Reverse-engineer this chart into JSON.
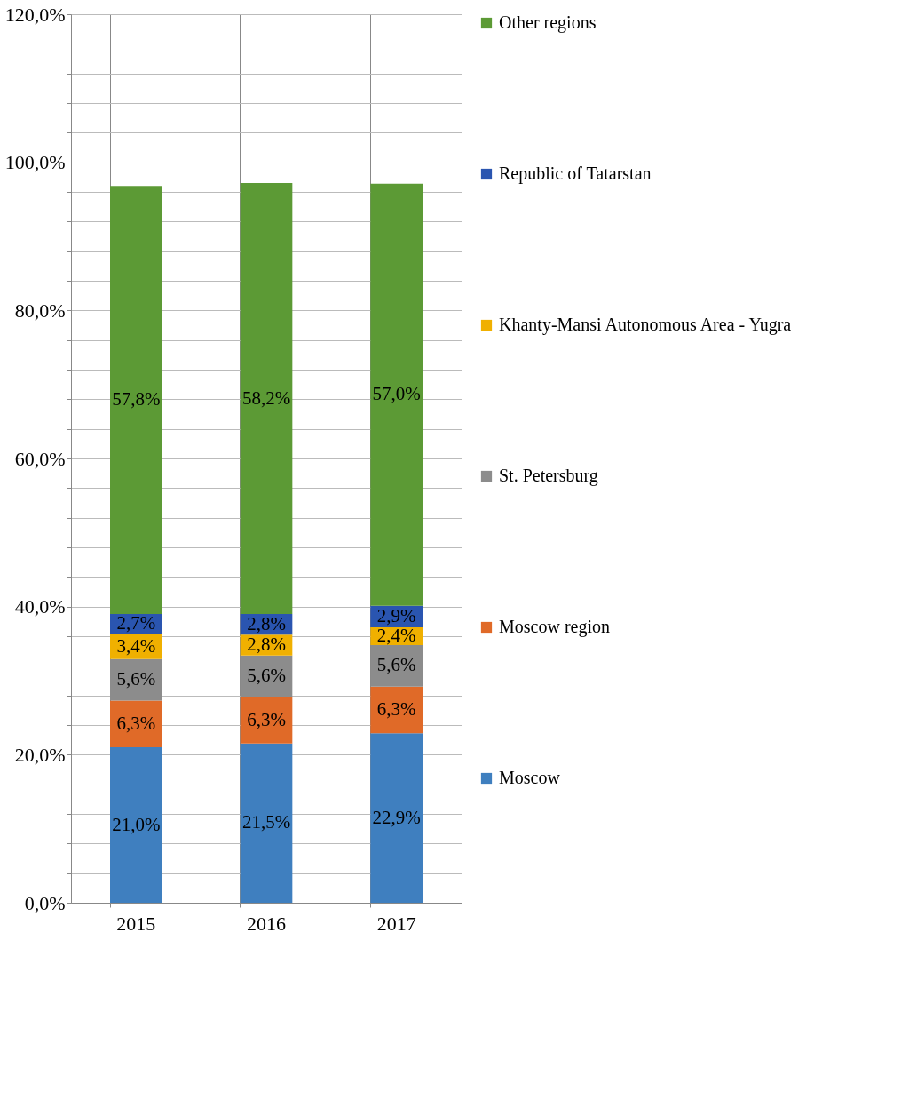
{
  "chart_data": {
    "type": "bar",
    "stacked": true,
    "categories": [
      "2015",
      "2016",
      "2017"
    ],
    "series": [
      {
        "name": "Moscow",
        "color": "#3f7fbf",
        "values": [
          21.0,
          21.5,
          22.9
        ],
        "value_labels": [
          "21,0%",
          "21,5%",
          "22,9%"
        ]
      },
      {
        "name": "Moscow region",
        "color": "#e06a28",
        "values": [
          6.3,
          6.3,
          6.3
        ],
        "value_labels": [
          "6,3%",
          "6,3%",
          "6,3%"
        ]
      },
      {
        "name": "St. Petersburg",
        "color": "#8c8c8c",
        "values": [
          5.6,
          5.6,
          5.6
        ],
        "value_labels": [
          "5,6%",
          "5,6%",
          "5,6%"
        ]
      },
      {
        "name": "Khanty-Mansi Autonomous Area - Yugra",
        "color": "#f0b000",
        "values": [
          3.4,
          2.8,
          2.4
        ],
        "value_labels": [
          "3,4%",
          "2,8%",
          "2,4%"
        ]
      },
      {
        "name": "Republic of Tatarstan",
        "color": "#2a55b0",
        "values": [
          2.7,
          2.8,
          2.9
        ],
        "value_labels": [
          "2,7%",
          "2,8%",
          "2,9%"
        ]
      },
      {
        "name": "Other regions",
        "color": "#5c9a35",
        "values": [
          57.8,
          58.2,
          57.0
        ],
        "value_labels": [
          "57,8%",
          "58,2%",
          "57,0%"
        ]
      }
    ],
    "ylim": [
      0,
      120
    ],
    "yticks": [
      {
        "value": 0,
        "label": "0,0%"
      },
      {
        "value": 4,
        "label": null
      },
      {
        "value": 8,
        "label": null
      },
      {
        "value": 12,
        "label": null
      },
      {
        "value": 16,
        "label": null
      },
      {
        "value": 20,
        "label": "20,0%"
      },
      {
        "value": 24,
        "label": null
      },
      {
        "value": 28,
        "label": null
      },
      {
        "value": 32,
        "label": null
      },
      {
        "value": 36,
        "label": null
      },
      {
        "value": 40,
        "label": "40,0%"
      },
      {
        "value": 44,
        "label": null
      },
      {
        "value": 48,
        "label": null
      },
      {
        "value": 52,
        "label": null
      },
      {
        "value": 56,
        "label": null
      },
      {
        "value": 60,
        "label": "60,0%"
      },
      {
        "value": 64,
        "label": null
      },
      {
        "value": 68,
        "label": null
      },
      {
        "value": 72,
        "label": null
      },
      {
        "value": 76,
        "label": null
      },
      {
        "value": 80,
        "label": "80,0%"
      },
      {
        "value": 84,
        "label": null
      },
      {
        "value": 88,
        "label": null
      },
      {
        "value": 92,
        "label": null
      },
      {
        "value": 96,
        "label": null
      },
      {
        "value": 100,
        "label": "100,0%"
      },
      {
        "value": 104,
        "label": null
      },
      {
        "value": 108,
        "label": null
      },
      {
        "value": 112,
        "label": null
      },
      {
        "value": 116,
        "label": null
      },
      {
        "value": 120,
        "label": "120,0%"
      }
    ],
    "grid": true,
    "legend": "right"
  }
}
